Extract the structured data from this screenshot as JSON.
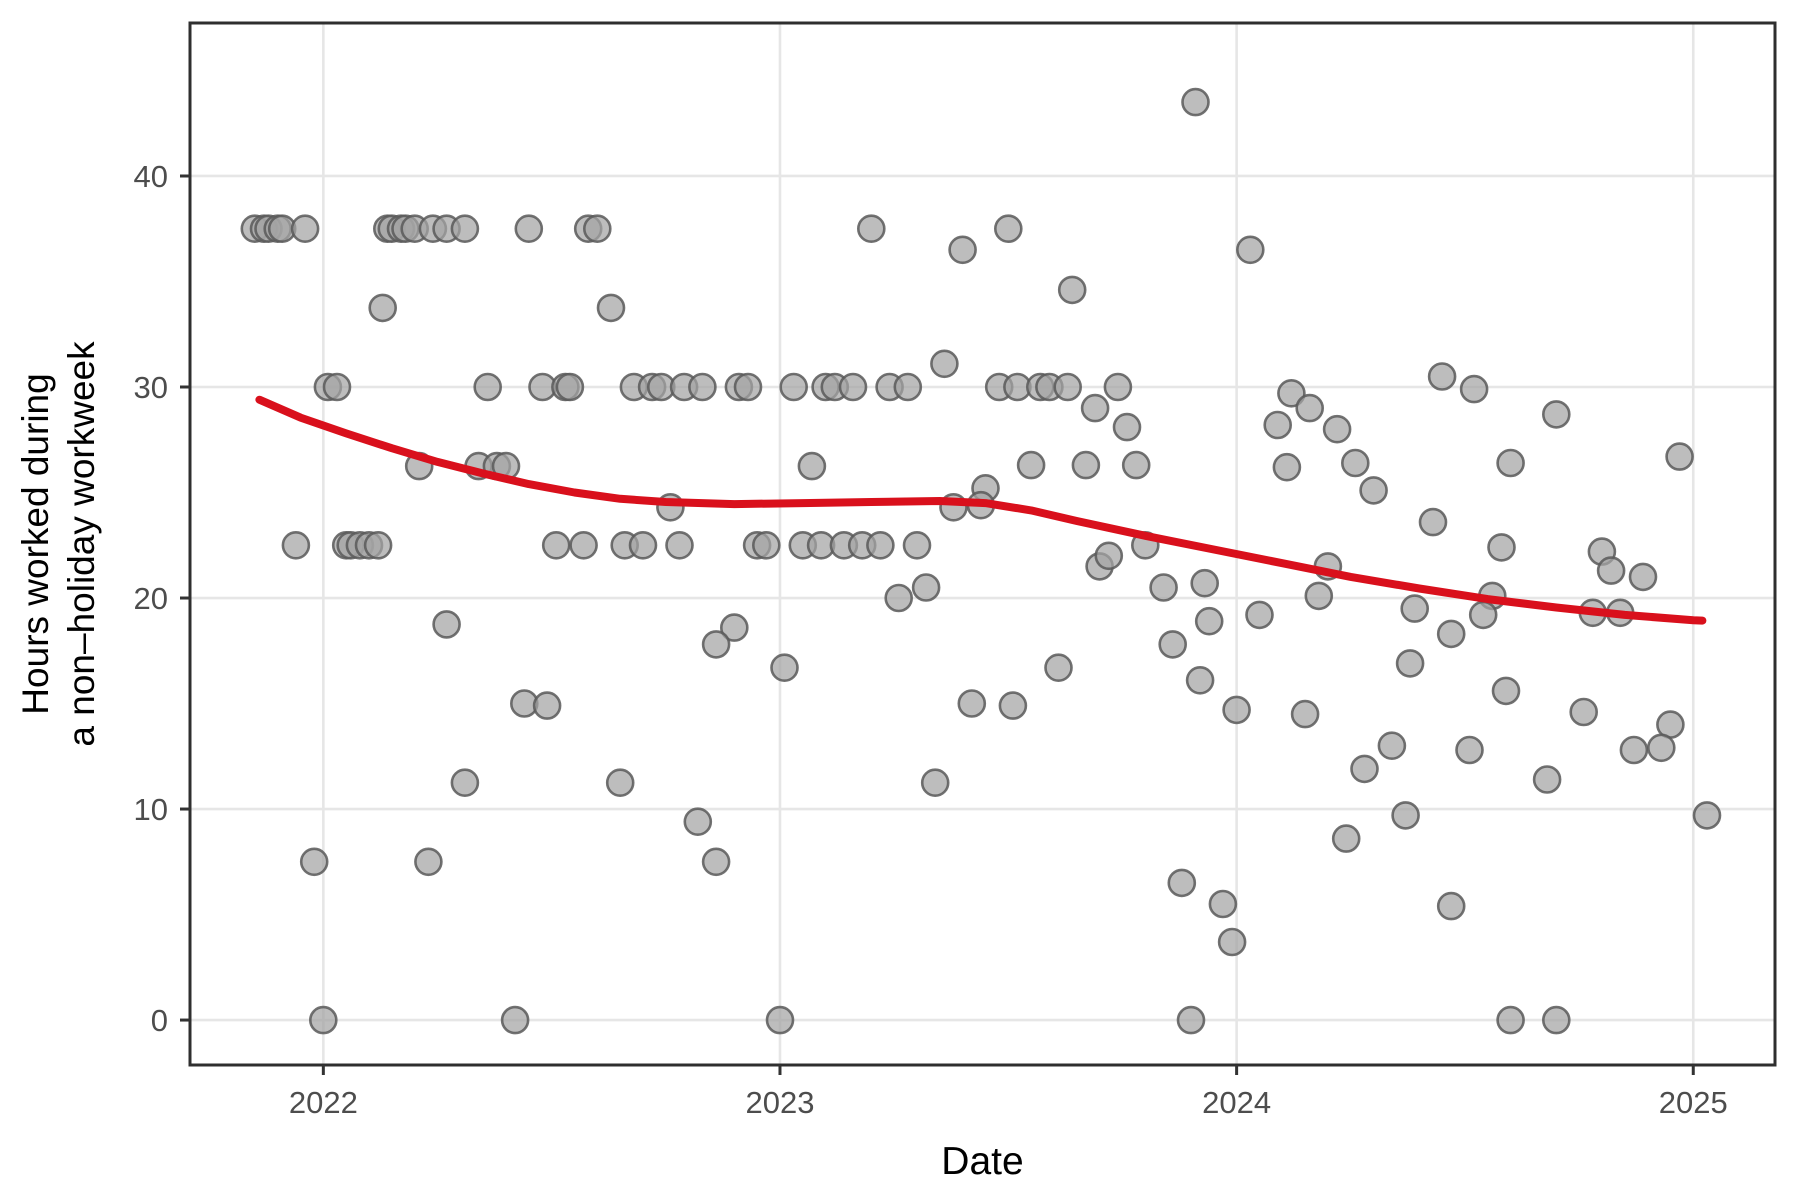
{
  "figure": {
    "background": "#FFFFFF",
    "panel_border_color": "#2F2F2F",
    "grid_color": "#E6E6E6",
    "tick_color": "#333333",
    "tick_label_color": "#4D4D4D",
    "axis_title_color": "#000000",
    "point_fill": "#A3A3A3",
    "point_stroke": "#595959",
    "smooth_color": "#D9101C"
  },
  "chart_data": {
    "type": "scatter",
    "title": "",
    "xlabel": "Date",
    "ylabel_lines": [
      "Hours worked during",
      "a non–holiday workweek"
    ],
    "x_ticks": [
      2022,
      2023,
      2024,
      2025
    ],
    "x_tick_labels": [
      "2022",
      "2023",
      "2024",
      "2025"
    ],
    "y_ticks": [
      0,
      10,
      20,
      30,
      40
    ],
    "y_tick_labels": [
      "0",
      "10",
      "20",
      "30",
      "40"
    ],
    "xlim": [
      2021.708,
      2025.179
    ],
    "ylim": [
      -2.13,
      47.25
    ],
    "grid": true,
    "legend": "none",
    "points": [
      [
        2021.85,
        37.5
      ],
      [
        2021.87,
        37.5
      ],
      [
        2021.88,
        37.5
      ],
      [
        2021.9,
        37.5
      ],
      [
        2021.91,
        37.5
      ],
      [
        2021.96,
        37.5
      ],
      [
        2022.14,
        37.5
      ],
      [
        2022.15,
        37.5
      ],
      [
        2022.17,
        37.5
      ],
      [
        2022.18,
        37.5
      ],
      [
        2022.2,
        37.5
      ],
      [
        2022.24,
        37.5
      ],
      [
        2022.27,
        37.5
      ],
      [
        2022.31,
        37.5
      ],
      [
        2022.45,
        37.5
      ],
      [
        2022.58,
        37.5
      ],
      [
        2022.6,
        37.5
      ],
      [
        2023.2,
        37.5
      ],
      [
        2023.5,
        37.5
      ],
      [
        2022.13,
        33.75
      ],
      [
        2022.63,
        33.75
      ],
      [
        2023.4,
        36.5
      ],
      [
        2024.03,
        36.5
      ],
      [
        2023.91,
        43.5
      ],
      [
        2023.64,
        34.6
      ],
      [
        2023.36,
        31.1
      ],
      [
        2022.01,
        30
      ],
      [
        2022.03,
        30
      ],
      [
        2022.36,
        30
      ],
      [
        2022.48,
        30
      ],
      [
        2022.53,
        30
      ],
      [
        2022.54,
        30
      ],
      [
        2022.68,
        30
      ],
      [
        2022.72,
        30
      ],
      [
        2022.74,
        30
      ],
      [
        2022.79,
        30
      ],
      [
        2022.83,
        30
      ],
      [
        2022.91,
        30
      ],
      [
        2022.93,
        30
      ],
      [
        2023.03,
        30
      ],
      [
        2023.1,
        30
      ],
      [
        2023.12,
        30
      ],
      [
        2023.16,
        30
      ],
      [
        2023.24,
        30
      ],
      [
        2023.28,
        30
      ],
      [
        2023.48,
        30
      ],
      [
        2023.52,
        30
      ],
      [
        2023.57,
        30
      ],
      [
        2023.59,
        30
      ],
      [
        2023.63,
        30
      ],
      [
        2023.74,
        30
      ],
      [
        2024.12,
        29.7
      ],
      [
        2024.16,
        29.0
      ],
      [
        2024.09,
        28.2
      ],
      [
        2024.22,
        28.0
      ],
      [
        2024.45,
        30.5
      ],
      [
        2024.52,
        29.9
      ],
      [
        2024.7,
        28.7
      ],
      [
        2023.69,
        29.0
      ],
      [
        2023.76,
        28.1
      ],
      [
        2022.21,
        26.25
      ],
      [
        2022.34,
        26.25
      ],
      [
        2022.38,
        26.25
      ],
      [
        2022.4,
        26.25
      ],
      [
        2023.07,
        26.25
      ],
      [
        2023.55,
        26.3
      ],
      [
        2023.67,
        26.3
      ],
      [
        2023.78,
        26.3
      ],
      [
        2024.11,
        26.2
      ],
      [
        2024.26,
        26.4
      ],
      [
        2024.6,
        26.4
      ],
      [
        2024.97,
        26.7
      ],
      [
        2024.3,
        25.1
      ],
      [
        2023.45,
        25.2
      ],
      [
        2022.76,
        24.3
      ],
      [
        2023.38,
        24.3
      ],
      [
        2023.44,
        24.4
      ],
      [
        2024.43,
        23.6
      ],
      [
        2021.94,
        22.5
      ],
      [
        2022.05,
        22.5
      ],
      [
        2022.06,
        22.5
      ],
      [
        2022.08,
        22.5
      ],
      [
        2022.1,
        22.5
      ],
      [
        2022.12,
        22.5
      ],
      [
        2022.51,
        22.5
      ],
      [
        2022.57,
        22.5
      ],
      [
        2022.66,
        22.5
      ],
      [
        2022.7,
        22.5
      ],
      [
        2022.78,
        22.5
      ],
      [
        2022.95,
        22.5
      ],
      [
        2022.97,
        22.5
      ],
      [
        2023.05,
        22.5
      ],
      [
        2023.09,
        22.5
      ],
      [
        2023.14,
        22.5
      ],
      [
        2023.18,
        22.5
      ],
      [
        2023.22,
        22.5
      ],
      [
        2023.3,
        22.5
      ],
      [
        2023.8,
        22.5
      ],
      [
        2023.7,
        21.5
      ],
      [
        2023.72,
        22.0
      ],
      [
        2024.2,
        21.5
      ],
      [
        2024.8,
        22.2
      ],
      [
        2024.82,
        21.3
      ],
      [
        2024.89,
        21.0
      ],
      [
        2024.58,
        22.4
      ],
      [
        2023.26,
        20.0
      ],
      [
        2023.32,
        20.5
      ],
      [
        2023.84,
        20.5
      ],
      [
        2023.93,
        20.7
      ],
      [
        2024.18,
        20.1
      ],
      [
        2024.56,
        20.1
      ],
      [
        2024.05,
        19.2
      ],
      [
        2024.39,
        19.5
      ],
      [
        2024.54,
        19.2
      ],
      [
        2024.78,
        19.3
      ],
      [
        2024.84,
        19.3
      ],
      [
        2022.27,
        18.75
      ],
      [
        2022.9,
        18.6
      ],
      [
        2023.94,
        18.9
      ],
      [
        2024.47,
        18.3
      ],
      [
        2022.86,
        17.8
      ],
      [
        2023.86,
        17.8
      ],
      [
        2023.01,
        16.7
      ],
      [
        2023.61,
        16.7
      ],
      [
        2024.38,
        16.9
      ],
      [
        2023.92,
        16.1
      ],
      [
        2022.44,
        15.0
      ],
      [
        2022.49,
        14.9
      ],
      [
        2023.42,
        15.0
      ],
      [
        2023.51,
        14.9
      ],
      [
        2024.0,
        14.7
      ],
      [
        2024.15,
        14.5
      ],
      [
        2024.76,
        14.6
      ],
      [
        2024.59,
        15.6
      ],
      [
        2024.95,
        14.0
      ],
      [
        2024.34,
        13.0
      ],
      [
        2024.28,
        11.9
      ],
      [
        2024.51,
        12.8
      ],
      [
        2024.87,
        12.8
      ],
      [
        2024.93,
        12.9
      ],
      [
        2024.68,
        11.4
      ],
      [
        2022.31,
        11.25
      ],
      [
        2022.65,
        11.25
      ],
      [
        2023.34,
        11.25
      ],
      [
        2022.82,
        9.4
      ],
      [
        2024.37,
        9.7
      ],
      [
        2025.03,
        9.7
      ],
      [
        2024.24,
        8.6
      ],
      [
        2021.98,
        7.5
      ],
      [
        2022.23,
        7.5
      ],
      [
        2022.86,
        7.5
      ],
      [
        2023.88,
        6.5
      ],
      [
        2023.97,
        5.5
      ],
      [
        2024.47,
        5.4
      ],
      [
        2023.99,
        3.7
      ],
      [
        2022.0,
        0
      ],
      [
        2022.42,
        0
      ],
      [
        2023.0,
        0
      ],
      [
        2023.9,
        0
      ],
      [
        2024.6,
        0
      ],
      [
        2024.7,
        0
      ]
    ],
    "smooth_line": {
      "name": "loess-trend",
      "points": [
        [
          2021.86,
          29.4
        ],
        [
          2021.95,
          28.55
        ],
        [
          2022.05,
          27.8
        ],
        [
          2022.15,
          27.1
        ],
        [
          2022.25,
          26.45
        ],
        [
          2022.35,
          25.9
        ],
        [
          2022.45,
          25.4
        ],
        [
          2022.55,
          25.0
        ],
        [
          2022.65,
          24.7
        ],
        [
          2022.75,
          24.55
        ],
        [
          2022.9,
          24.45
        ],
        [
          2023.05,
          24.5
        ],
        [
          2023.2,
          24.55
        ],
        [
          2023.35,
          24.6
        ],
        [
          2023.45,
          24.5
        ],
        [
          2023.55,
          24.15
        ],
        [
          2023.65,
          23.65
        ],
        [
          2023.8,
          22.95
        ],
        [
          2023.95,
          22.3
        ],
        [
          2024.1,
          21.65
        ],
        [
          2024.25,
          21.0
        ],
        [
          2024.4,
          20.45
        ],
        [
          2024.55,
          19.95
        ],
        [
          2024.7,
          19.55
        ],
        [
          2024.85,
          19.2
        ],
        [
          2025.0,
          18.95
        ],
        [
          2025.02,
          18.93
        ]
      ]
    }
  }
}
